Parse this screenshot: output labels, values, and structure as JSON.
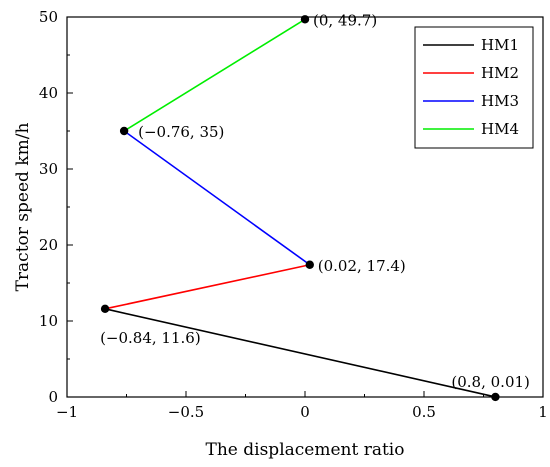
{
  "chart_data": {
    "type": "line",
    "title": "",
    "xlabel": "The displacement ratio",
    "ylabel": "Tractor speed km/h",
    "xlim": [
      -1,
      1
    ],
    "ylim": [
      0,
      50
    ],
    "x_ticks": [
      -1,
      -0.5,
      0,
      0.5,
      1
    ],
    "x_tick_labels": [
      "−1",
      "−0.5",
      "0",
      "0.5",
      "1"
    ],
    "y_ticks": [
      0,
      10,
      20,
      30,
      40,
      50
    ],
    "y_tick_labels": [
      "0",
      "10",
      "20",
      "30",
      "40",
      "50"
    ],
    "grid": false,
    "legend_position": "top-right",
    "series": [
      {
        "name": "HM1",
        "color": "#000000",
        "points": [
          [
            0.8,
            0.01
          ],
          [
            -0.84,
            11.6
          ]
        ]
      },
      {
        "name": "HM2",
        "color": "#ff0000",
        "points": [
          [
            -0.84,
            11.6
          ],
          [
            0.02,
            17.4
          ]
        ]
      },
      {
        "name": "HM3",
        "color": "#0000ff",
        "points": [
          [
            0.02,
            17.4
          ],
          [
            -0.76,
            35
          ]
        ]
      },
      {
        "name": "HM4",
        "color": "#00ee00",
        "points": [
          [
            -0.76,
            35
          ],
          [
            0,
            49.7
          ]
        ]
      }
    ],
    "markers": [
      {
        "x": 0.8,
        "y": 0.01,
        "label": "(0.8, 0.01)"
      },
      {
        "x": -0.84,
        "y": 11.6,
        "label": "(−0.84, 11.6)"
      },
      {
        "x": 0.02,
        "y": 17.4,
        "label": "(0.02, 17.4)"
      },
      {
        "x": -0.76,
        "y": 35,
        "label": "(−0.76, 35)"
      },
      {
        "x": 0,
        "y": 49.7,
        "label": "(0, 49.7)"
      }
    ]
  }
}
